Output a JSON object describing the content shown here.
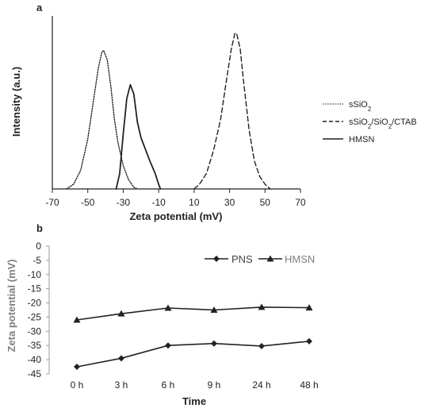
{
  "chart_data": [
    {
      "panel": "a",
      "type": "line",
      "xlabel": "Zeta potential (mV)",
      "ylabel": "Intensity (a.u.)",
      "xlim": [
        -70,
        70
      ],
      "xticks": [
        -70,
        -50,
        -30,
        -10,
        10,
        30,
        50,
        70
      ],
      "ylim": [
        0,
        1
      ],
      "y_tick_labels": false,
      "legend_position": "right",
      "series": [
        {
          "name": "sSiO2",
          "legend": {
            "base": "sSiO",
            "sub": "2",
            "tail": ""
          },
          "style": "dotted",
          "points": [
            [
              -62,
              0
            ],
            [
              -58,
              0.03
            ],
            [
              -54,
              0.12
            ],
            [
              -50,
              0.32
            ],
            [
              -47,
              0.55
            ],
            [
              -44,
              0.78
            ],
            [
              -42,
              0.88
            ],
            [
              -41,
              0.89
            ],
            [
              -39,
              0.83
            ],
            [
              -37,
              0.66
            ],
            [
              -35,
              0.45
            ],
            [
              -33,
              0.3
            ],
            [
              -30,
              0.15
            ],
            [
              -27,
              0.06
            ],
            [
              -24,
              0.01
            ],
            [
              -22,
              0
            ]
          ]
        },
        {
          "name": "sSiO2/SiO2/CTAB",
          "legend": {
            "base": "sSiO",
            "sub": "2",
            "mid": "/SiO",
            "sub2": "2",
            "tail": "/CTAB"
          },
          "style": "dashed",
          "points": [
            [
              10,
              0
            ],
            [
              13,
              0.03
            ],
            [
              17,
              0.1
            ],
            [
              21,
              0.25
            ],
            [
              25,
              0.45
            ],
            [
              28,
              0.68
            ],
            [
              31,
              0.9
            ],
            [
              33,
              1.0
            ],
            [
              34,
              1.0
            ],
            [
              36,
              0.9
            ],
            [
              38,
              0.68
            ],
            [
              41,
              0.38
            ],
            [
              44,
              0.18
            ],
            [
              47,
              0.08
            ],
            [
              50,
              0.03
            ],
            [
              53,
              0
            ]
          ]
        },
        {
          "name": "HMSN",
          "legend": {
            "base": "HMSN"
          },
          "style": "solid",
          "points": [
            [
              -34,
              0
            ],
            [
              -32,
              0.1
            ],
            [
              -30,
              0.35
            ],
            [
              -28,
              0.58
            ],
            [
              -26,
              0.67
            ],
            [
              -24,
              0.61
            ],
            [
              -22,
              0.43
            ],
            [
              -20,
              0.33
            ],
            [
              -18,
              0.27
            ],
            [
              -15,
              0.18
            ],
            [
              -12,
              0.1
            ],
            [
              -10,
              0.03
            ],
            [
              -9,
              0
            ]
          ]
        }
      ]
    },
    {
      "panel": "b",
      "type": "line",
      "xlabel": "Time",
      "ylabel": "Zeta potential (mV)",
      "categories": [
        "0 h",
        "3 h",
        "6 h",
        "9 h",
        "24 h",
        "48 h"
      ],
      "ylim": [
        -45,
        0
      ],
      "yticks": [
        0,
        -5,
        -10,
        -15,
        -20,
        -25,
        -30,
        -35,
        -40,
        -45
      ],
      "legend_position": "top-right",
      "series": [
        {
          "name": "PNS",
          "marker": "diamond",
          "values": [
            -42.5,
            -39.5,
            -35,
            -34.3,
            -35.2,
            -33.5
          ]
        },
        {
          "name": "HMSN",
          "marker": "triangle",
          "values": [
            -26,
            -23.8,
            -21.8,
            -22.5,
            -21.5,
            -21.7
          ]
        }
      ]
    }
  ]
}
